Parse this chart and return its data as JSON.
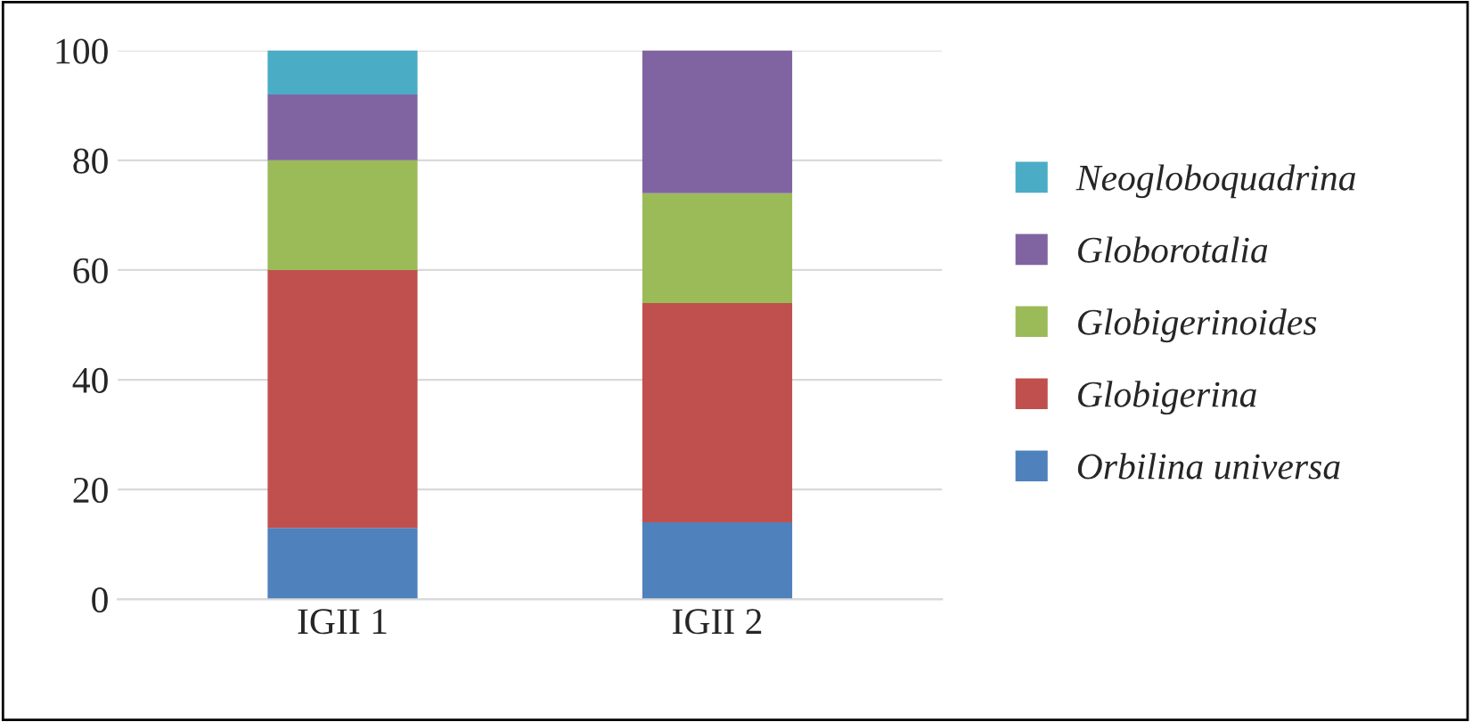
{
  "chart_data": {
    "type": "bar",
    "stacked": true,
    "categories": [
      "IGII 1",
      "IGII 2"
    ],
    "series": [
      {
        "name": "Orbilina universa",
        "color": "#4f81bd",
        "values": [
          13,
          14
        ]
      },
      {
        "name": "Globigerina",
        "color": "#c0504d",
        "values": [
          47,
          40
        ]
      },
      {
        "name": "Globigerinoides",
        "color": "#9bbb59",
        "values": [
          20,
          20
        ]
      },
      {
        "name": "Globorotalia",
        "color": "#8064a2",
        "values": [
          12,
          26
        ]
      },
      {
        "name": "Neogloboquadrina",
        "color": "#4bacc6",
        "values": [
          8,
          null
        ]
      }
    ],
    "ylim": [
      0,
      100
    ],
    "yticks": [
      0,
      20,
      40,
      60,
      80,
      100
    ],
    "grid": "y",
    "legend": "right"
  }
}
